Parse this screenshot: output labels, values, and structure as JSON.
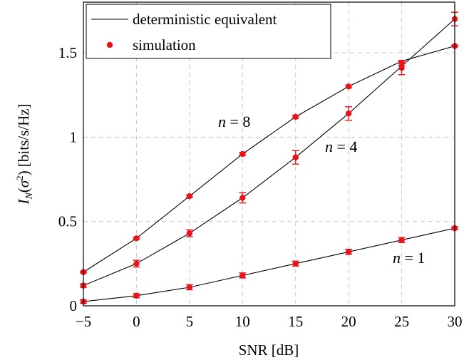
{
  "chart_data": {
    "type": "line",
    "xlabel": "SNR [dB]",
    "ylabel": "I_N(σ²) [bits/s/Hz]",
    "ylabel_parts": {
      "I": "I",
      "N": "N",
      "sigma": "σ",
      "sq": "2",
      "unit": "[bits/s/Hz]"
    },
    "xlim": [
      -5,
      30
    ],
    "ylim": [
      0,
      1.8
    ],
    "xticks": [
      -5,
      0,
      5,
      10,
      15,
      20,
      25,
      30
    ],
    "xtick_labels": [
      "−5",
      "0",
      "5",
      "10",
      "15",
      "20",
      "25",
      "30"
    ],
    "yticks": [
      0,
      0.5,
      1,
      1.5
    ],
    "ytick_labels": [
      "0",
      "0.5",
      "1",
      "1.5"
    ],
    "grid": true,
    "legend": {
      "placement": "top-left",
      "entries": [
        "deterministic equivalent",
        "simulation"
      ]
    },
    "x": [
      -5,
      0,
      5,
      10,
      15,
      20,
      25,
      30
    ],
    "series": [
      {
        "label_var": "n",
        "label_eq": " = ",
        "label_num": "8",
        "det": [
          0.2,
          0.4,
          0.65,
          0.9,
          1.12,
          1.3,
          1.45,
          1.54
        ],
        "sim": [
          0.2,
          0.4,
          0.65,
          0.9,
          1.12,
          1.3,
          1.44,
          1.54
        ],
        "err": [
          0.005,
          0.005,
          0.008,
          0.008,
          0.008,
          0.008,
          0.015,
          0.005
        ]
      },
      {
        "label_var": "n",
        "label_eq": " = ",
        "label_num": "4",
        "det": [
          0.12,
          0.25,
          0.43,
          0.64,
          0.88,
          1.14,
          1.42,
          1.7
        ],
        "sim": [
          0.12,
          0.25,
          0.43,
          0.64,
          0.88,
          1.14,
          1.41,
          1.7
        ],
        "err": [
          0.01,
          0.02,
          0.02,
          0.03,
          0.04,
          0.04,
          0.04,
          0.04
        ]
      },
      {
        "label_var": "n",
        "label_eq": " = ",
        "label_num": "1",
        "det": [
          0.025,
          0.06,
          0.11,
          0.18,
          0.25,
          0.32,
          0.39,
          0.46
        ],
        "sim": [
          0.025,
          0.06,
          0.11,
          0.18,
          0.25,
          0.32,
          0.39,
          0.46
        ],
        "err": [
          0.01,
          0.012,
          0.015,
          0.015,
          0.015,
          0.015,
          0.015,
          0.008
        ]
      }
    ],
    "colors": {
      "simulation": "#e8141a",
      "line": "#000000"
    }
  }
}
